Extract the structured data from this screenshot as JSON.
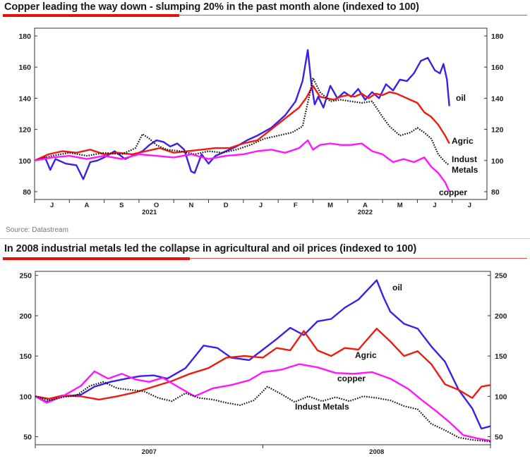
{
  "charts": [
    {
      "title": "Copper leading the way down - slumping 20% in the past month alone (indexed to 100)"
    },
    {
      "title": "In 2008 industrial metals led the collapse in agricultural and oil prices (indexed to 100)"
    }
  ],
  "source": "Source: Datastream",
  "colors": {
    "oil": "#3d1fe6",
    "agric": "#ee1b0f",
    "copper": "#ff16ff",
    "metals": "#111111",
    "accent": "#e3120b"
  },
  "chart_data": [
    {
      "type": "line",
      "title": "Copper leading the way down - slumping 20% in the past month alone (indexed to 100)",
      "ylim": [
        75,
        185
      ],
      "yticks": [
        80,
        100,
        120,
        140,
        160,
        180
      ],
      "xlim": [
        0,
        13
      ],
      "x_tick_labels": [
        "J",
        "A",
        "S",
        "O",
        "N",
        "D",
        "J",
        "F",
        "M",
        "A",
        "M",
        "J",
        "J"
      ],
      "x_group_labels": [
        "2021",
        "2022"
      ],
      "grid": false,
      "series": [
        {
          "name": "oil",
          "style": "solid",
          "x": [
            0,
            0.3,
            0.45,
            0.6,
            0.9,
            1.2,
            1.4,
            1.6,
            1.8,
            2.0,
            2.3,
            2.6,
            2.9,
            3.1,
            3.3,
            3.5,
            3.7,
            3.9,
            4.1,
            4.3,
            4.5,
            4.6,
            4.8,
            5.0,
            5.2,
            5.5,
            5.8,
            6.1,
            6.4,
            6.8,
            7.2,
            7.5,
            7.7,
            7.85,
            7.95,
            8.05,
            8.15,
            8.3,
            8.5,
            8.7,
            8.9,
            9.1,
            9.3,
            9.5,
            9.7,
            9.9,
            10.1,
            10.3,
            10.5,
            10.7,
            10.9,
            11.1,
            11.3,
            11.5,
            11.65,
            11.75,
            11.85,
            11.92
          ],
          "y": [
            100,
            102,
            94,
            101,
            98,
            97,
            88,
            99,
            100,
            102,
            106,
            101,
            104,
            106,
            110,
            113,
            112,
            109,
            111,
            107,
            93,
            92,
            104,
            98,
            103,
            106,
            109,
            113,
            116,
            121,
            129,
            138,
            151,
            171,
            150,
            136,
            141,
            134,
            148,
            140,
            144,
            141,
            146,
            139,
            144,
            140,
            149,
            145,
            152,
            151,
            156,
            164,
            166,
            158,
            156,
            162,
            152,
            135
          ]
        },
        {
          "name": "Agric",
          "style": "solid",
          "x": [
            0,
            0.4,
            0.8,
            1.2,
            1.6,
            2.0,
            2.4,
            2.8,
            3.2,
            3.6,
            4.0,
            4.4,
            4.8,
            5.2,
            5.6,
            6.0,
            6.4,
            6.8,
            7.2,
            7.6,
            7.8,
            8.0,
            8.2,
            8.4,
            8.6,
            8.8,
            9.0,
            9.2,
            9.4,
            9.6,
            9.8,
            10.0,
            10.2,
            10.4,
            10.6,
            10.8,
            11.0,
            11.2,
            11.4,
            11.6,
            11.8,
            11.92
          ],
          "y": [
            100,
            104,
            106,
            105,
            107,
            104,
            105,
            104,
            106,
            108,
            105,
            106,
            107,
            108,
            108,
            111,
            113,
            120,
            127,
            134,
            140,
            148,
            141,
            140,
            139,
            141,
            142,
            141,
            143,
            140,
            143,
            142,
            144,
            143,
            141,
            139,
            137,
            131,
            128,
            123,
            116,
            111
          ]
        },
        {
          "name": "Indust Metals",
          "style": "dotted",
          "x": [
            0,
            0.5,
            1.0,
            1.5,
            2.0,
            2.5,
            2.9,
            3.1,
            3.3,
            3.5,
            3.8,
            4.2,
            4.6,
            5.0,
            5.4,
            5.8,
            6.2,
            6.6,
            7.0,
            7.4,
            7.7,
            7.9,
            8.0,
            8.2,
            8.5,
            8.8,
            9.1,
            9.4,
            9.7,
            10.0,
            10.2,
            10.5,
            10.8,
            11.0,
            11.2,
            11.4,
            11.6,
            11.8,
            11.92
          ],
          "y": [
            100,
            103,
            105,
            103,
            105,
            104,
            108,
            117,
            114,
            110,
            107,
            106,
            104,
            106,
            105,
            107,
            110,
            114,
            116,
            118,
            122,
            142,
            153,
            144,
            138,
            139,
            138,
            137,
            138,
            128,
            122,
            116,
            118,
            121,
            118,
            114,
            104,
            99,
            97
          ]
        },
        {
          "name": "copper",
          "style": "solid",
          "x": [
            0,
            0.5,
            1.0,
            1.5,
            2.0,
            2.5,
            3.0,
            3.5,
            4.0,
            4.5,
            5.0,
            5.5,
            6.0,
            6.4,
            6.8,
            7.2,
            7.6,
            7.85,
            8.0,
            8.2,
            8.5,
            8.8,
            9.1,
            9.4,
            9.7,
            10.0,
            10.3,
            10.6,
            10.9,
            11.2,
            11.4,
            11.6,
            11.8,
            11.92
          ],
          "y": [
            100,
            102,
            103,
            101,
            103,
            101,
            104,
            103,
            102,
            104,
            101,
            103,
            104,
            106,
            107,
            105,
            108,
            113,
            107,
            110,
            111,
            110,
            110,
            111,
            106,
            104,
            99,
            101,
            99,
            102,
            96,
            92,
            86,
            80
          ]
        }
      ],
      "annotations": [
        "oil",
        "Agric",
        "Indust",
        "Metals",
        "copper"
      ]
    },
    {
      "type": "line",
      "title": "In 2008 industrial metals led the collapse in agricultural and oil prices (indexed to 100)",
      "ylim": [
        40,
        255
      ],
      "yticks": [
        50,
        100,
        150,
        200,
        250
      ],
      "xlim": [
        0,
        2
      ],
      "x_tick_labels": [
        "2007",
        "2008"
      ],
      "grid": false,
      "series": [
        {
          "name": "oil",
          "style": "solid",
          "x": [
            0,
            0.05,
            0.12,
            0.2,
            0.26,
            0.33,
            0.4,
            0.46,
            0.52,
            0.58,
            0.66,
            0.74,
            0.8,
            0.86,
            0.94,
            1.0,
            1.06,
            1.12,
            1.18,
            1.24,
            1.3,
            1.36,
            1.42,
            1.46,
            1.5,
            1.53,
            1.56,
            1.62,
            1.68,
            1.74,
            1.8,
            1.86,
            1.92,
            1.96,
            2.0
          ],
          "y": [
            100,
            93,
            100,
            102,
            112,
            118,
            122,
            125,
            126,
            122,
            135,
            163,
            160,
            148,
            145,
            158,
            171,
            185,
            176,
            193,
            196,
            210,
            220,
            232,
            244,
            223,
            205,
            190,
            184,
            162,
            143,
            108,
            85,
            60,
            63
          ]
        },
        {
          "name": "Agric",
          "style": "solid",
          "x": [
            0,
            0.06,
            0.12,
            0.2,
            0.28,
            0.36,
            0.44,
            0.52,
            0.6,
            0.68,
            0.76,
            0.84,
            0.92,
            1.0,
            1.06,
            1.12,
            1.18,
            1.24,
            1.3,
            1.36,
            1.42,
            1.46,
            1.5,
            1.56,
            1.62,
            1.68,
            1.74,
            1.8,
            1.86,
            1.92,
            1.96,
            2.0
          ],
          "y": [
            100,
            97,
            101,
            100,
            96,
            100,
            105,
            112,
            119,
            128,
            135,
            148,
            150,
            148,
            160,
            157,
            181,
            157,
            150,
            160,
            158,
            171,
            184,
            168,
            150,
            156,
            140,
            115,
            108,
            98,
            112,
            114
          ]
        },
        {
          "name": "copper",
          "style": "solid",
          "x": [
            0,
            0.05,
            0.12,
            0.2,
            0.26,
            0.32,
            0.38,
            0.44,
            0.5,
            0.56,
            0.62,
            0.7,
            0.78,
            0.86,
            0.94,
            1.0,
            1.08,
            1.16,
            1.24,
            1.32,
            1.4,
            1.48,
            1.56,
            1.64,
            1.7,
            1.76,
            1.82,
            1.88,
            1.94,
            2.0
          ],
          "y": [
            100,
            92,
            100,
            113,
            131,
            122,
            128,
            121,
            118,
            123,
            113,
            100,
            110,
            114,
            120,
            130,
            133,
            140,
            136,
            129,
            128,
            130,
            122,
            109,
            95,
            82,
            68,
            52,
            48,
            45
          ]
        },
        {
          "name": "Indust Metals",
          "style": "dotted",
          "x": [
            0,
            0.06,
            0.12,
            0.18,
            0.24,
            0.3,
            0.36,
            0.42,
            0.48,
            0.54,
            0.6,
            0.66,
            0.72,
            0.78,
            0.84,
            0.9,
            0.96,
            1.02,
            1.08,
            1.14,
            1.2,
            1.26,
            1.32,
            1.38,
            1.44,
            1.5,
            1.56,
            1.62,
            1.68,
            1.74,
            1.8,
            1.86,
            1.92,
            2.0
          ],
          "y": [
            100,
            95,
            99,
            101,
            113,
            118,
            110,
            108,
            106,
            98,
            94,
            104,
            98,
            96,
            92,
            89,
            95,
            112,
            103,
            93,
            100,
            94,
            99,
            94,
            100,
            98,
            95,
            88,
            84,
            66,
            58,
            49,
            46,
            44
          ]
        }
      ],
      "annotations": [
        "oil",
        "Agric",
        "copper",
        "Indust Metals"
      ]
    }
  ]
}
